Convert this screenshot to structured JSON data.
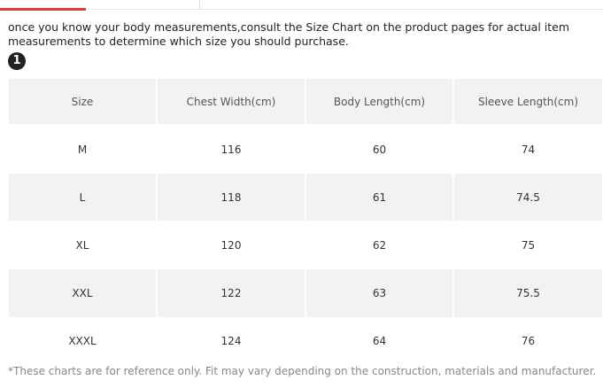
{
  "intro": "once you know your body measurements,consult the Size Chart on the product pages for actual item measurements to determine which size you should purchase.",
  "badge": "1",
  "table": {
    "header": [
      "Size",
      "Chest Width(cm)",
      "Body Length(cm)",
      "Sleeve Length(cm)"
    ],
    "rows": [
      [
        "M",
        "116",
        "60",
        "74"
      ],
      [
        "L",
        "118",
        "61",
        "74.5"
      ],
      [
        "XL",
        "120",
        "62",
        "75"
      ],
      [
        "XXL",
        "122",
        "63",
        "75.5"
      ],
      [
        "XXXL",
        "124",
        "64",
        "76"
      ]
    ]
  },
  "footnote": "*These charts are for reference only. Fit may vary depending on the construction, materials and manufacturer."
}
